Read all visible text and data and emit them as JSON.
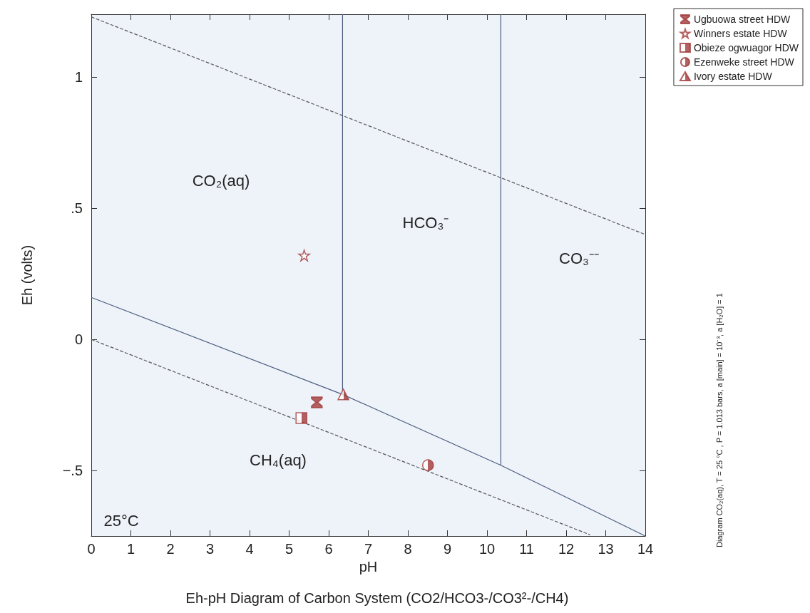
{
  "chart_data": {
    "type": "scatter",
    "xlabel": "pH",
    "ylabel": "Eh (volts)",
    "title": "Eh-pH Diagram of Carbon System (CO2/HCO3-/CO3²-/CH4)",
    "xlim": [
      0,
      14
    ],
    "xticks": [
      0,
      1,
      2,
      3,
      4,
      5,
      6,
      7,
      8,
      9,
      10,
      11,
      12,
      13,
      14
    ],
    "ylim": [
      -0.75,
      1.24
    ],
    "yticks": [
      {
        "value": -0.5,
        "label": "−.5"
      },
      {
        "value": 0,
        "label": "0"
      },
      {
        "value": 0.5,
        "label": ".5"
      },
      {
        "value": 1,
        "label": "1"
      }
    ],
    "grid": false,
    "legend": "top right",
    "series": [
      {
        "name": "Ugbuowa street HDW",
        "color": "#a33a3a",
        "x": [
          5.7
        ],
        "values": [
          -0.24
        ]
      },
      {
        "name": "Winners estate HDW",
        "color": "#a33a3a",
        "marker": "star",
        "x": [
          5.38
        ],
        "values": [
          0.32
        ]
      },
      {
        "name": "Obieze ogwuagor HDW",
        "color": "#a33a3a",
        "marker": "square",
        "x": [
          5.31
        ],
        "values": [
          -0.3
        ]
      },
      {
        "name": "Ezenweke street HDW",
        "color": "#a33a3a",
        "marker": "circle",
        "x": [
          8.51
        ],
        "values": [
          -0.48
        ]
      },
      {
        "name": "Ivory estate HDW",
        "color": "#a33a3a",
        "marker": "triangle",
        "x": [
          6.37
        ],
        "values": [
          -0.21
        ]
      },
      {
        "type": "line",
        "color": "#4a5d7e",
        "line_style": "solid",
        "x": [
          0,
          6.35,
          10.35,
          14
        ],
        "values": [
          0.16,
          -0.21,
          -0.48,
          -0.75
        ]
      },
      {
        "type": "line",
        "color": "#4a5d7e",
        "line_style": "solid",
        "x": [
          6.35,
          6.35
        ],
        "values": [
          -0.21,
          1.24
        ]
      },
      {
        "type": "line",
        "color": "#4a5d7e",
        "line_style": "solid",
        "x": [
          10.35,
          10.35
        ],
        "values": [
          -0.48,
          1.24
        ]
      },
      {
        "type": "line",
        "color": "#555555",
        "line_style": "dashed",
        "x": [
          0,
          14
        ],
        "values": [
          1.23,
          0.4
        ]
      },
      {
        "type": "line",
        "color": "#555555",
        "line_style": "dashed",
        "x": [
          0,
          12.6
        ],
        "values": [
          0,
          -0.745
        ]
      }
    ],
    "annotations": [
      "CO₂(aq)",
      "HCO₃⁻",
      "CO₃⁻⁻",
      "CH₄(aq)",
      "25°C",
      "Diagram CO₂(aq), T = 25 °C , P = 1.013 bars, a [main] = 10⁻³, a [H₂O] = 1"
    ]
  }
}
